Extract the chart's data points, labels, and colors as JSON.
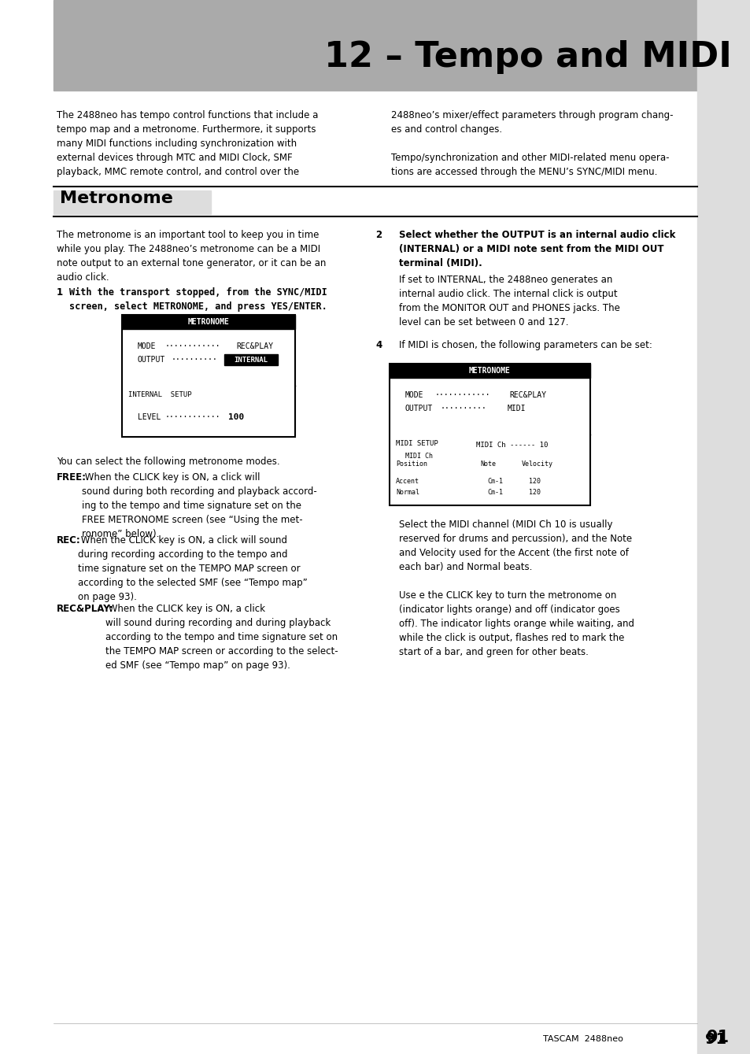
{
  "title": "12 – Tempo and MIDI",
  "title_bg": "#aaaaaa",
  "page_bg": "#ffffff",
  "section_title": "Metronome",
  "intro_left": "The 2488neo has tempo control functions that include a\ntempo map and a metronome. Furthermore, it supports\nmany MIDI functions including synchronization with\nexternal devices through MTC and MIDI Clock, SMF\nplayback, MMC remote control, and control over the",
  "intro_right": "2488neo’s mixer/effect parameters through program chang-\nes and control changes.\n\nTempo/synchronization and other MIDI-related menu opera-\ntions are accessed through the MENU’s SYNC/MIDI menu.",
  "metronome_intro": "The metronome is an important tool to keep you in time\nwhile you play. The 2488neo’s metronome can be a MIDI\nnote output to an external tone generator, or it can be an\naudio click.",
  "step1_label": "1",
  "step1_text": "With the transport stopped, from the SYNC/MIDI\nscreen, select METRONOME, and press YES/ENTER.",
  "step2_label": "2",
  "step2_text_bold": "Select whether the OUTPUT is an internal audio click\n(INTERNAL) or a MIDI note sent from the MIDI OUT\nterminal (MIDI).",
  "step2_text_normal": "If set to INTERNAL, the 2488neo generates an\ninternal audio click. The internal click is output\nfrom the MONITOR OUT and PHONES jacks. The\nlevel can be set between 0 and 127.",
  "step4_label": "4",
  "step4_text": "If MIDI is chosen, the following parameters can be set:",
  "body_text3_left": "You can select the following metronome modes.",
  "free_text": "FREE: When the CLICK key is ON, a click will\nsound during both recording and playback accord-\ning to the tempo and time signature set on the\nFREE METRONOME screen (see “Using the met-\nronome” below).",
  "rec_text": "REC: When the CLICK key is ON, a click will sound\nduring recording according to the tempo and\ntime signature set on the TEMPO MAP screen or\naccording to the selected SMF (see “Tempo map”\non page 93).",
  "recplay_text": "REC&PLAY: When the CLICK key is ON, a click\nwill sound during recording and during playback\naccording to the tempo and time signature set on\nthe TEMPO MAP screen or according to the select-\ned SMF (see “Tempo map” on page 93).",
  "right_bottom_text": "Select the MIDI channel (MIDI Ch 10 is usually\nreserved for drums and percussion), and the Note\nand Velocity used for the Accent (the first note of\neach bar) and Normal beats.\n\nUse e the CLICK key to turn the metronome on\n(indicator lights orange) and off (indicator goes\noff). The indicator lights orange while waiting, and\nwhile the click is output, flashes red to mark the\nstart of a bar, and green for other beats.",
  "footer_text": "TASCAM  2488neo",
  "page_number": "91"
}
